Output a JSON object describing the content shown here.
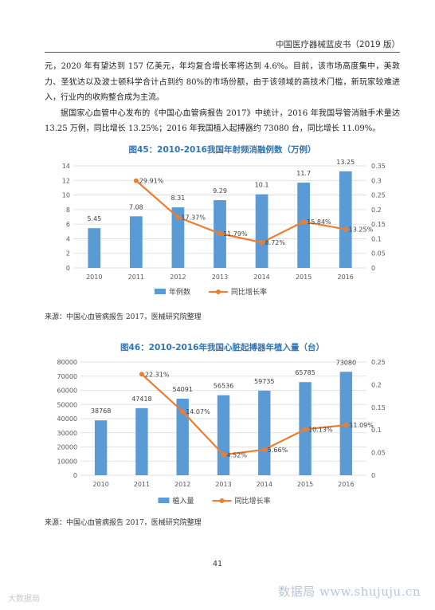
{
  "header": {
    "title": "中国医疗器械蓝皮书（2019 版）"
  },
  "body": {
    "paragraphs": [
      {
        "text": "元，2020 年有望达到 157 亿美元，年均复合增长率将达到 4.6%。目前，该市场高度集中，美敦力、圣犹达以及波士顿科学合计占到约 80%的市场份额，由于该领域的高技术门槛，新玩家较难进入，行业内的收购整合成为主流。",
        "indent": false
      },
      {
        "text": "据国家心血管中心发布的《中国心血管病报告 2017》中统计，2016 年我国导管消融手术量达 13.25 万例，同比增长 13.25%；2016 年我国植入起搏器约 73080 台，同比增长 11.09%。",
        "indent": true
      }
    ]
  },
  "charts": [
    {
      "title": "图45：2010-2016我国年射频消融例数（万例）",
      "source": "来源：中国心血管病报告 2017，医械研究院整理"
    },
    {
      "title": "图46：2010-2016年我国心脏起搏器年植入量（台）",
      "source": "来源：中国心血管病报告 2017，医械研究院整理"
    }
  ],
  "chart_data": [
    {
      "type": "bar",
      "title": "图45：2010-2016我国年射频消融例数（万例）",
      "categories": [
        "2010",
        "2011",
        "2012",
        "2013",
        "2014",
        "2015",
        "2016"
      ],
      "series": [
        {
          "name": "年例数",
          "type": "bar",
          "axis": "left",
          "color": "#5b9bd5",
          "values": [
            5.45,
            7.08,
            8.31,
            9.29,
            10.1,
            11.7,
            13.25
          ],
          "labels": [
            "5.45",
            "7.08",
            "8.31",
            "9.29",
            "10.1",
            "11.7",
            "13.25"
          ]
        },
        {
          "name": "同比增长率",
          "type": "line",
          "axis": "right",
          "color": "#ed7d31",
          "values": [
            null,
            0.2991,
            0.1737,
            0.1179,
            0.0872,
            0.1584,
            0.1325
          ],
          "labels": [
            "",
            "29.91%",
            "17.37%",
            "11.79%",
            "8.72%",
            "15.84%",
            "13.25%"
          ]
        }
      ],
      "y_left": {
        "range": [
          0,
          14
        ],
        "ticks": [
          "0",
          "2",
          "4",
          "6",
          "8",
          "10",
          "12",
          "14"
        ]
      },
      "y_right": {
        "range": [
          0,
          0.35
        ],
        "ticks": [
          "0",
          "0.05",
          "0.1",
          "0.15",
          "0.2",
          "0.25",
          "0.3",
          "0.35"
        ]
      },
      "grid": true,
      "legend_position": "bottom"
    },
    {
      "type": "bar",
      "title": "图46：2010-2016年我国心脏起搏器年植入量（台）",
      "categories": [
        "2010",
        "2011",
        "2012",
        "2013",
        "2014",
        "2015",
        "2016"
      ],
      "series": [
        {
          "name": "植入量",
          "type": "bar",
          "axis": "left",
          "color": "#5b9bd5",
          "values": [
            38768,
            47418,
            54091,
            56536,
            59735,
            65785,
            73080
          ],
          "labels": [
            "38768",
            "47418",
            "54091",
            "56536",
            "59735",
            "65785",
            "73080"
          ]
        },
        {
          "name": "同比增长率",
          "type": "line",
          "axis": "right",
          "color": "#ed7d31",
          "values": [
            null,
            0.2231,
            0.1407,
            0.0452,
            0.0566,
            0.1013,
            0.1109
          ],
          "labels": [
            "",
            "22.31%",
            "14.07%",
            "4.52%",
            "5.66%",
            "10.13%",
            "11.09%"
          ]
        }
      ],
      "y_left": {
        "range": [
          0,
          80000
        ],
        "ticks": [
          "0",
          "10000",
          "20000",
          "30000",
          "40000",
          "50000",
          "60000",
          "70000",
          "80000"
        ]
      },
      "y_right": {
        "range": [
          0,
          0.25
        ],
        "ticks": [
          "0",
          "0.05",
          "0.1",
          "0.15",
          "0.2",
          "0.25"
        ]
      },
      "grid": true,
      "legend_position": "bottom"
    }
  ],
  "footer": {
    "page_number": "41",
    "watermark_left": "大数据局",
    "watermark_right": "数据局  www.shujuju.cn"
  }
}
